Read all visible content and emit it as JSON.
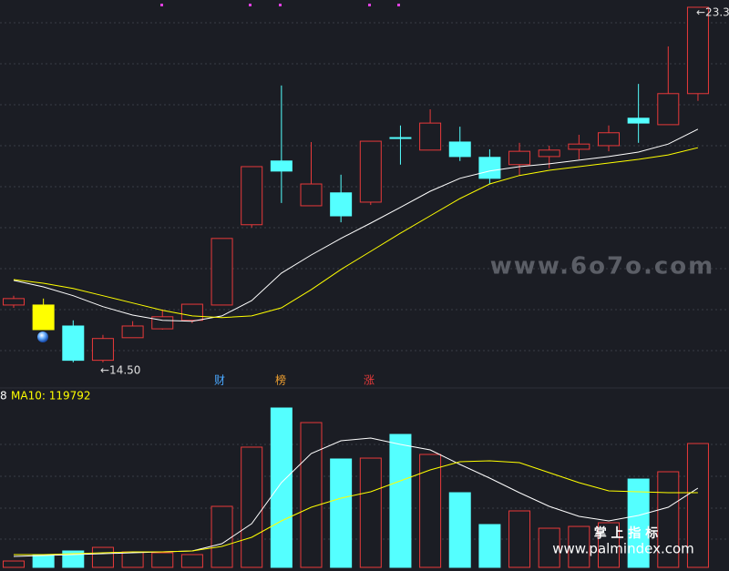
{
  "chart_data": [
    {
      "type": "candlestick",
      "open": [
        15.92,
        15.92,
        15.4,
        14.55,
        15.11,
        15.33,
        15.54,
        15.92,
        17.91,
        19.49,
        18.38,
        18.7,
        18.47,
        20.07,
        19.76,
        19.96,
        19.58,
        19.4,
        19.6,
        19.78,
        19.87,
        20.55,
        20.39,
        21.16
      ],
      "high": [
        16.15,
        16.08,
        15.54,
        15.18,
        15.52,
        15.81,
        15.94,
        17.57,
        19.35,
        21.36,
        19.96,
        19.15,
        19.98,
        20.37,
        20.77,
        20.34,
        19.78,
        19.94,
        19.87,
        20.14,
        20.37,
        21.4,
        22.33,
        23.3
      ],
      "low": [
        15.85,
        15.31,
        14.5,
        14.5,
        15.11,
        15.31,
        15.47,
        15.92,
        17.84,
        18.45,
        18.38,
        17.97,
        18.4,
        19.4,
        19.76,
        19.49,
        18.92,
        19.13,
        19.31,
        19.53,
        19.73,
        19.94,
        20.39,
        20.98
      ],
      "close": [
        16.08,
        15.31,
        14.55,
        15.09,
        15.4,
        15.63,
        15.94,
        17.57,
        19.35,
        19.24,
        18.92,
        18.13,
        19.98,
        20.05,
        20.43,
        19.6,
        19.06,
        19.73,
        19.76,
        19.91,
        20.19,
        20.43,
        21.16,
        23.3
      ],
      "candle_colors": [
        "#e8393a",
        "#ffff00",
        "#54ffff",
        "#e8393a",
        "#e8393a",
        "#e8393a",
        "#e8393a",
        "#e8393a",
        "#e8393a",
        "#54ffff",
        "#e8393a",
        "#54ffff",
        "#e8393a",
        "#54ffff",
        "#e8393a",
        "#54ffff",
        "#54ffff",
        "#e8393a",
        "#e8393a",
        "#e8393a",
        "#e8393a",
        "#54ffff",
        "#e8393a",
        "#e8393a"
      ],
      "series": [
        {
          "color": "#ffffff",
          "values": [
            16.53,
            16.37,
            16.15,
            15.88,
            15.67,
            15.54,
            15.52,
            15.65,
            16.03,
            16.71,
            17.16,
            17.57,
            17.95,
            18.34,
            18.74,
            19.06,
            19.24,
            19.35,
            19.42,
            19.51,
            19.6,
            19.71,
            19.91,
            20.28
          ]
        },
        {
          "color": "#ffff00",
          "values": [
            16.55,
            16.46,
            16.33,
            16.15,
            15.97,
            15.79,
            15.65,
            15.61,
            15.65,
            15.85,
            16.3,
            16.8,
            17.25,
            17.7,
            18.13,
            18.56,
            18.92,
            19.13,
            19.26,
            19.35,
            19.44,
            19.53,
            19.64,
            19.82
          ]
        }
      ],
      "ylim": [
        14.0,
        23.48
      ],
      "annotations": [
        "←14.50",
        "←23.3"
      ],
      "event_markers": [
        "财",
        "榜",
        "涨"
      ],
      "watermarks": [
        "www.6o7o.com",
        "掌 上 指 标",
        "www.palmindex.com"
      ]
    },
    {
      "type": "bar",
      "values": [
        10200,
        20500,
        26300,
        32100,
        24800,
        23400,
        20500,
        97900,
        192900,
        255700,
        232300,
        173900,
        175300,
        213300,
        181200,
        119800,
        68700,
        90600,
        62800,
        65700,
        71600,
        141700,
        153400,
        198700
      ],
      "series": [
        {
          "color": "#ffffff",
          "values": [
            17500,
            19000,
            20500,
            21900,
            23400,
            24800,
            26300,
            38000,
            70100,
            135900,
            182600,
            203100,
            207500,
            197200,
            188500,
            165100,
            143200,
            119800,
            97900,
            81800,
            74500,
            83300,
            96400,
            127100
          ]
        },
        {
          "color": "#ffff00",
          "values": [
            20500,
            20500,
            21900,
            23400,
            24800,
            24800,
            26300,
            33600,
            48200,
            74500,
            96400,
            111000,
            121300,
            138800,
            156300,
            169500,
            170900,
            168000,
            151900,
            135900,
            122700,
            121300,
            119800,
            119792
          ]
        }
      ],
      "legend_text": [
        "8",
        "MA10: 119792"
      ],
      "ylim": [
        0,
        267400
      ]
    }
  ]
}
